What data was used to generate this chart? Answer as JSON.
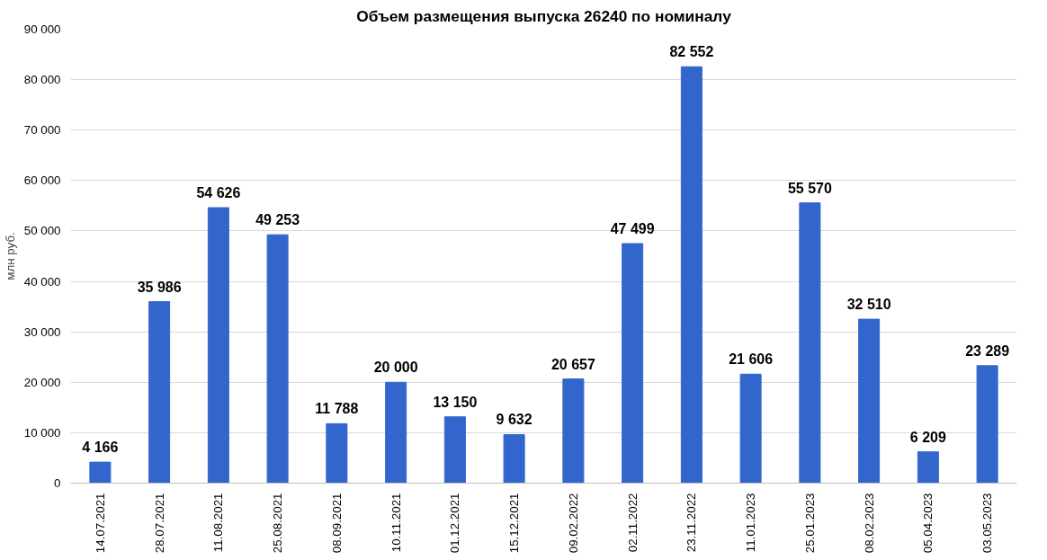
{
  "chart_data": {
    "type": "bar",
    "title": "Объем размещения выпуска 26240 по номиналу",
    "ylabel": "млн руб.",
    "categories": [
      "14.07.2021",
      "28.07.2021",
      "11.08.2021",
      "25.08.2021",
      "08.09.2021",
      "10.11.2021",
      "01.12.2021",
      "15.12.2021",
      "09.02.2022",
      "02.11.2022",
      "23.11.2022",
      "11.01.2023",
      "25.01.2023",
      "08.02.2023",
      "05.04.2023",
      "03.05.2023"
    ],
    "values": [
      4166,
      35986,
      54626,
      49253,
      11788,
      20000,
      13150,
      9632,
      20657,
      47499,
      82552,
      21606,
      55570,
      32510,
      6209,
      23289
    ],
    "value_labels": [
      "4 166",
      "35 986",
      "54 626",
      "49 253",
      "11 788",
      "20 000",
      "13 150",
      "9 632",
      "20 657",
      "47 499",
      "82 552",
      "21 606",
      "55 570",
      "32 510",
      "6 209",
      "23 289"
    ],
    "color": "#3366cc",
    "ylim": [
      0,
      90000
    ],
    "yticks": [
      {
        "value": 0,
        "label": "0"
      },
      {
        "value": 10000,
        "label": "10 000"
      },
      {
        "value": 20000,
        "label": "20 000"
      },
      {
        "value": 30000,
        "label": "30 000"
      },
      {
        "value": 40000,
        "label": "40 000"
      },
      {
        "value": 50000,
        "label": "50 000"
      },
      {
        "value": 60000,
        "label": "60 000"
      },
      {
        "value": 70000,
        "label": "70 000"
      },
      {
        "value": 80000,
        "label": "80 000"
      },
      {
        "value": 90000,
        "label": "90 000"
      }
    ],
    "grid": "y"
  }
}
